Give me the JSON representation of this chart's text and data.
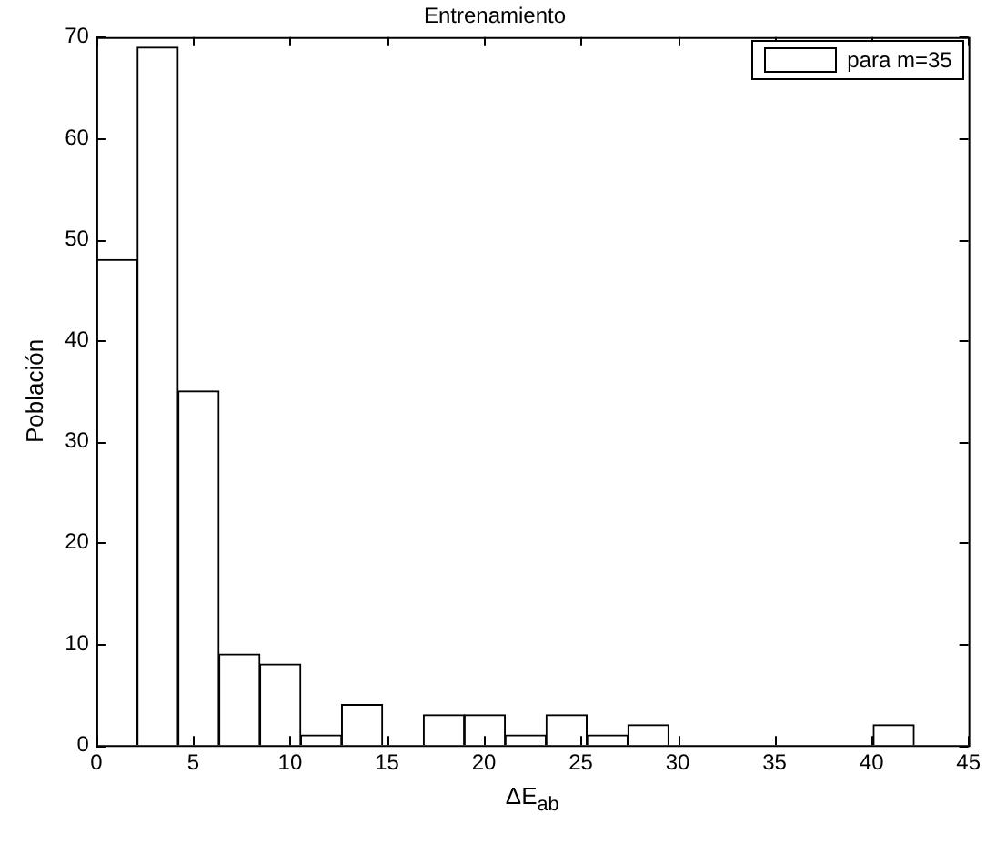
{
  "chart_data": {
    "type": "histogram",
    "title": "Entrenamiento",
    "xlabel": "ΔE$_{ab}$",
    "ylabel": "Población",
    "bins": [
      0,
      2.11,
      4.22,
      6.33,
      8.44,
      10.55,
      12.66,
      14.77,
      16.88,
      18.99,
      21.1,
      23.21,
      25.32,
      27.43,
      29.54,
      31.65,
      33.76,
      35.87,
      37.98,
      40.09,
      42.2
    ],
    "series": [
      {
        "name": "para m=35",
        "color": "#ffffff",
        "values": [
          48,
          69,
          35,
          9,
          8,
          1,
          4,
          0,
          3,
          3,
          1,
          3,
          1,
          2,
          0,
          0,
          0,
          0,
          0,
          2
        ]
      }
    ],
    "xlim": [
      0,
      45
    ],
    "xticks": [
      0,
      5,
      10,
      15,
      20,
      25,
      30,
      35,
      40,
      45
    ],
    "ylim": [
      0,
      70
    ],
    "yticks": [
      0,
      10,
      20,
      30,
      40,
      50,
      60,
      70
    ],
    "grid": false,
    "legend": "top right"
  }
}
